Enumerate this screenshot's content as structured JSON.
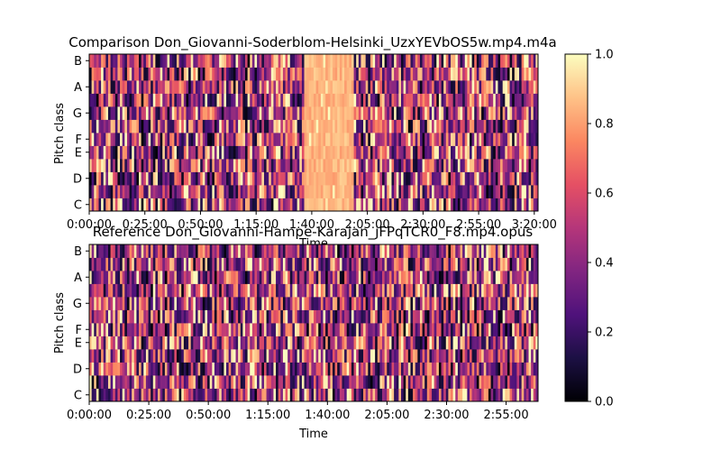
{
  "chart_data": [
    {
      "type": "heatmap",
      "title": "Comparison Don_Giovanni-Soderblom-Helsinki_UzxYEVbOS5w.mp4.m4a",
      "xlabel": "Time",
      "ylabel": "Pitch class",
      "x_tick_labels": [
        "0:00:00",
        "0:25:00",
        "0:50:00",
        "1:15:00",
        "1:40:00",
        "2:05:00",
        "2:30:00",
        "2:55:00",
        "3:20:00"
      ],
      "y_tick_labels": [
        "C",
        "D",
        "E",
        "F",
        "G",
        "A",
        "B"
      ],
      "pitch_classes": 12,
      "time_columns": 190,
      "bright_region": {
        "from": "1:36:00",
        "to": "1:58:00",
        "level": 0.85
      },
      "value_range": [
        0,
        1
      ]
    },
    {
      "type": "heatmap",
      "title": "Reference Don_Giovanni-Hampe-Karajan_jFPqTCR0_F8.mp4.opus",
      "xlabel": "Time",
      "ylabel": "Pitch class",
      "x_tick_labels": [
        "0:00:00",
        "0:25:00",
        "0:50:00",
        "1:15:00",
        "1:40:00",
        "2:05:00",
        "2:30:00",
        "2:55:00"
      ],
      "y_tick_labels": [
        "C",
        "D",
        "E",
        "F",
        "G",
        "A",
        "B"
      ],
      "pitch_classes": 12,
      "time_columns": 190,
      "value_range": [
        0,
        1
      ]
    }
  ],
  "colorbar": {
    "colormap": "magma",
    "ticks": [
      "0.0",
      "0.2",
      "0.4",
      "0.6",
      "0.8",
      "1.0"
    ],
    "range": [
      0,
      1
    ]
  }
}
